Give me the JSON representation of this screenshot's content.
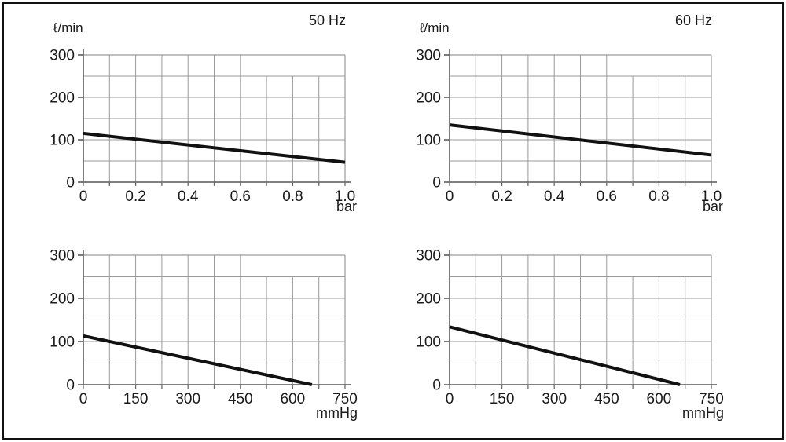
{
  "page": {
    "background": "#ffffff",
    "border_color": "#111111"
  },
  "colors": {
    "grid": "#9a9a9a",
    "axis": "#6e6e6e",
    "curve": "#111111",
    "text": "#1a1a1a"
  },
  "chart_data": [
    {
      "type": "line",
      "title": "50 Hz",
      "ylabel": "ℓ/min",
      "xlabel": "bar",
      "xlim": [
        0,
        1.0
      ],
      "ylim": [
        0,
        300
      ],
      "x_grid_step": 0.1,
      "y_grid_step": 50,
      "x_ticks": [
        0,
        0.2,
        0.4,
        0.6,
        0.8,
        1.0
      ],
      "x_tick_labels": [
        "0",
        "0.2",
        "0.4",
        "0.6",
        "0.8",
        "1.0"
      ],
      "y_ticks": [
        0,
        100,
        200,
        300
      ],
      "y_tick_labels": [
        "0",
        "100",
        "200",
        "300"
      ],
      "grid": true,
      "legend": false,
      "series": [
        {
          "name": "flow-vs-pressure-50hz",
          "points": [
            [
              0,
              115
            ],
            [
              1.0,
              47
            ]
          ]
        }
      ]
    },
    {
      "type": "line",
      "title": "60 Hz",
      "ylabel": "ℓ/min",
      "xlabel": "bar",
      "xlim": [
        0,
        1.0
      ],
      "ylim": [
        0,
        300
      ],
      "x_grid_step": 0.1,
      "y_grid_step": 50,
      "x_ticks": [
        0,
        0.2,
        0.4,
        0.6,
        0.8,
        1.0
      ],
      "x_tick_labels": [
        "0",
        "0.2",
        "0.4",
        "0.6",
        "0.8",
        "1.0"
      ],
      "y_ticks": [
        0,
        100,
        200,
        300
      ],
      "y_tick_labels": [
        "0",
        "100",
        "200",
        "300"
      ],
      "grid": true,
      "legend": false,
      "series": [
        {
          "name": "flow-vs-pressure-60hz",
          "points": [
            [
              0,
              135
            ],
            [
              1.0,
              64
            ]
          ]
        }
      ]
    },
    {
      "type": "line",
      "title": "",
      "ylabel": "",
      "xlabel": "mmHg",
      "xlim": [
        0,
        750
      ],
      "ylim": [
        0,
        300
      ],
      "x_grid_step": 75,
      "y_grid_step": 50,
      "x_ticks": [
        0,
        150,
        300,
        450,
        600,
        750
      ],
      "x_tick_labels": [
        "0",
        "150",
        "300",
        "450",
        "600",
        "750"
      ],
      "y_ticks": [
        0,
        100,
        200,
        300
      ],
      "y_tick_labels": [
        "0",
        "100",
        "200",
        "300"
      ],
      "grid": true,
      "legend": false,
      "series": [
        {
          "name": "flow-vs-vacuum-50hz",
          "points": [
            [
              0,
              113
            ],
            [
              655,
              0
            ]
          ]
        }
      ]
    },
    {
      "type": "line",
      "title": "",
      "ylabel": "",
      "xlabel": "mmHg",
      "xlim": [
        0,
        750
      ],
      "ylim": [
        0,
        300
      ],
      "x_grid_step": 75,
      "y_grid_step": 50,
      "x_ticks": [
        0,
        150,
        300,
        450,
        600,
        750
      ],
      "x_tick_labels": [
        "0",
        "150",
        "300",
        "450",
        "600",
        "750"
      ],
      "y_ticks": [
        0,
        100,
        200,
        300
      ],
      "y_tick_labels": [
        "0",
        "100",
        "200",
        "300"
      ],
      "grid": true,
      "legend": false,
      "series": [
        {
          "name": "flow-vs-vacuum-60hz",
          "points": [
            [
              0,
              134
            ],
            [
              660,
              0
            ]
          ]
        }
      ]
    }
  ]
}
